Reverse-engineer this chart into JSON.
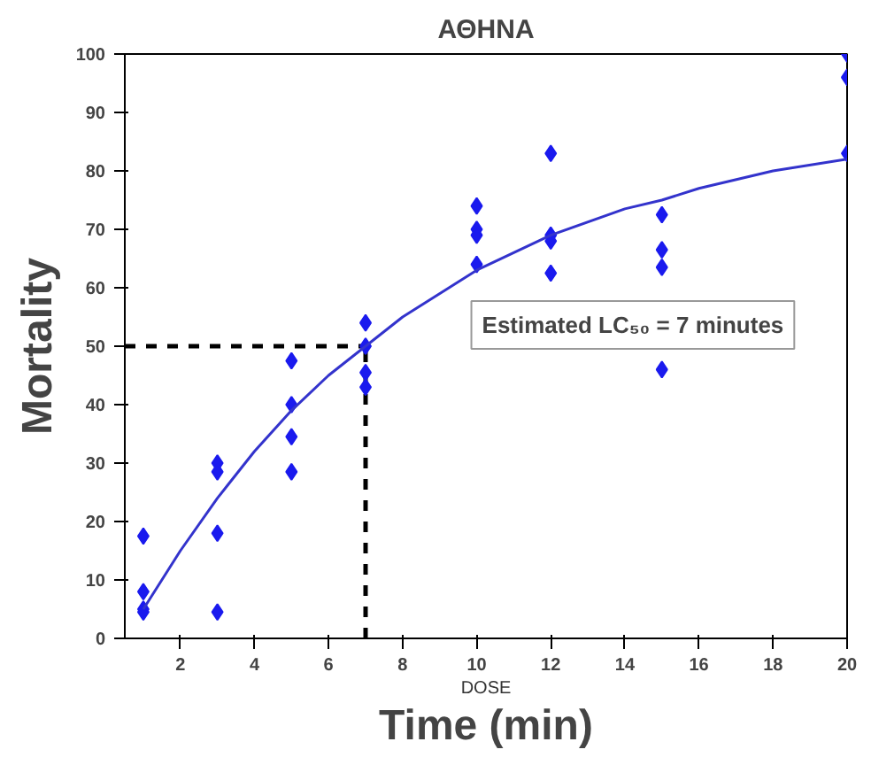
{
  "chart_data": {
    "type": "scatter",
    "title": "ΑΘΗΝΑ",
    "xlabel": "Time (min)",
    "ylabel": "Mortality",
    "xlim": [
      0.5,
      20
    ],
    "ylim": [
      0,
      100
    ],
    "xticks": [
      2,
      4,
      6,
      8,
      10,
      12,
      14,
      16,
      18,
      20
    ],
    "yticks": [
      0,
      10,
      20,
      30,
      40,
      50,
      60,
      70,
      80,
      90,
      100
    ],
    "grid": false,
    "marker": "diamond",
    "series": [
      {
        "color": "#1a1aee",
        "x": [
          1,
          1,
          1,
          1,
          3,
          3,
          3,
          3,
          5,
          5,
          5,
          5,
          7,
          7,
          7,
          7,
          10,
          10,
          10,
          10,
          12,
          12,
          12,
          12,
          15,
          15,
          15,
          15,
          20,
          20,
          20
        ],
        "values": [
          17.5,
          8,
          5,
          4.5,
          30,
          28.5,
          18,
          4.5,
          47.5,
          40,
          34.5,
          28.5,
          54,
          50,
          45.5,
          43,
          74,
          70,
          69,
          64,
          83,
          69,
          68,
          62.5,
          72.5,
          66.5,
          63.5,
          46,
          100,
          96,
          83
        ]
      },
      {
        "type": "line",
        "color": "#3333cc",
        "marker": "none",
        "line_style": "solid",
        "x": [
          1,
          2,
          3,
          4,
          5,
          6,
          7,
          8,
          10,
          12,
          14,
          15,
          16,
          18,
          20
        ],
        "values": [
          5,
          15,
          24,
          32,
          39,
          45,
          50,
          55,
          63,
          69,
          73.5,
          75,
          77,
          80,
          82
        ]
      }
    ],
    "ref_lines": [
      {
        "axis": "y",
        "value": 50,
        "color": "#000000",
        "line_style": "dashed"
      },
      {
        "axis": "x",
        "value": 7,
        "color": "#000000",
        "line_style": "dashed"
      }
    ],
    "annotations": [
      "Estimated LC₅₀ = 7 minutes",
      "DOSE"
    ]
  }
}
